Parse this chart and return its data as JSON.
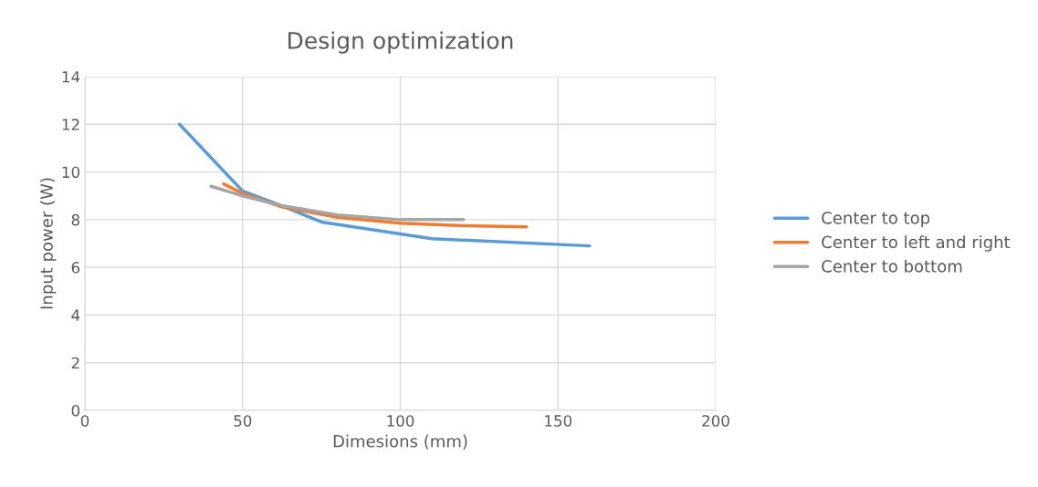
{
  "chart_data": {
    "type": "line",
    "title": "Design optimization",
    "xlabel": "Dimesions (mm)",
    "ylabel": "Input power (W)",
    "xlim": [
      0,
      200
    ],
    "xticks": [
      0,
      50,
      100,
      150,
      200
    ],
    "ylim": [
      0,
      14
    ],
    "yticks": [
      0,
      2,
      4,
      6,
      8,
      10,
      12,
      14
    ],
    "grid": true,
    "legend": "right",
    "marker": "none",
    "line_style": "solid",
    "series": [
      {
        "name": "Center to top",
        "color": "#5b9bd5",
        "x": [
          30,
          50,
          62,
          75,
          100,
          110,
          160
        ],
        "values": [
          12,
          9.2,
          8.6,
          7.9,
          7.4,
          7.2,
          6.9
        ]
      },
      {
        "name": "Center to left and right",
        "color": "#ed7d31",
        "x": [
          44,
          50,
          62,
          80,
          100,
          120,
          140
        ],
        "values": [
          9.5,
          9.1,
          8.55,
          8.1,
          7.85,
          7.75,
          7.7
        ]
      },
      {
        "name": "Center to bottom",
        "color": "#a5a5a5",
        "x": [
          40,
          50,
          62,
          80,
          100,
          120
        ],
        "values": [
          9.4,
          9.0,
          8.6,
          8.2,
          8.0,
          8.0
        ]
      }
    ]
  }
}
